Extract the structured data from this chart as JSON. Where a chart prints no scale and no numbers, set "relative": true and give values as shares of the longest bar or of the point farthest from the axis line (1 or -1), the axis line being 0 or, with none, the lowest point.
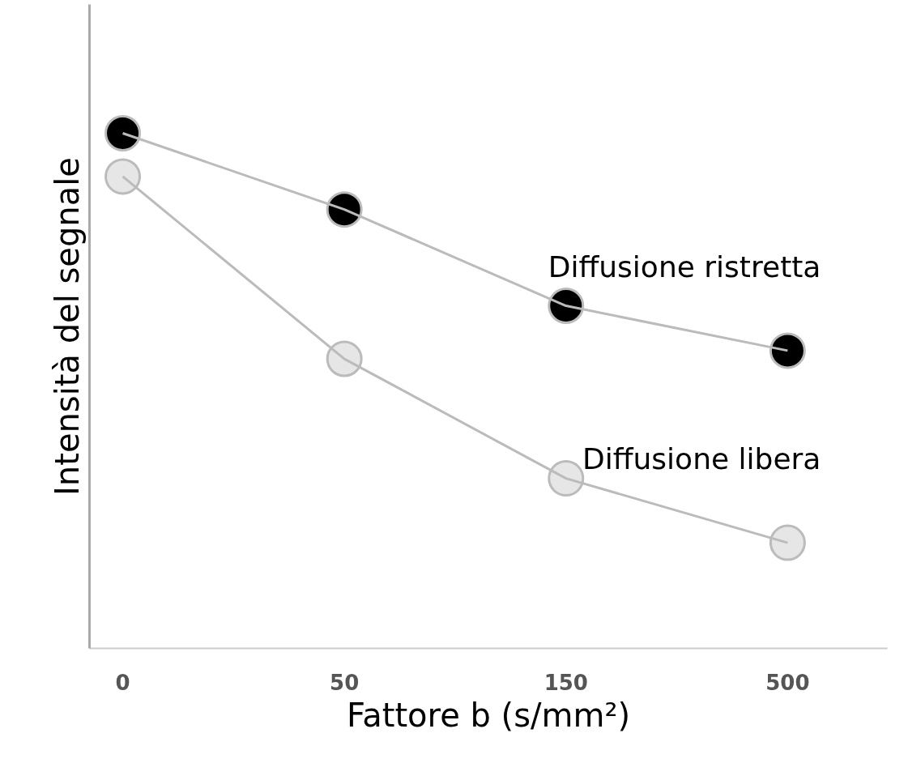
{
  "chart_data": {
    "type": "line",
    "xlabel": "Fattore b (s/mm²)",
    "ylabel": "Intensità del segnale",
    "categories": [
      "0",
      "50",
      "150",
      "500"
    ],
    "relative": true,
    "marker": "circle",
    "line_style": "solid",
    "grid": false,
    "tick_labels": "x",
    "series": [
      {
        "name": "Diffusione ristretta",
        "color": "#000000",
        "values": [
          1,
          0.852,
          0.665,
          0.578
        ]
      },
      {
        "name": "Diffusione libera",
        "color": "#e6e6e6",
        "values": [
          0.916,
          0.562,
          0.33,
          0.205
        ]
      }
    ]
  }
}
